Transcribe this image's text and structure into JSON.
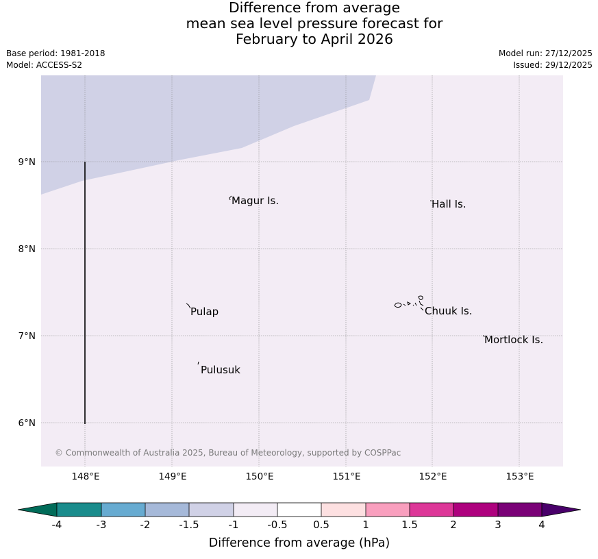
{
  "header": {
    "title_line1": "Difference from average",
    "title_line2": "mean sea level pressure forecast for",
    "title_line3": "February to April 2026",
    "base_period": "Base period: 1981-2018",
    "model": "Model: ACCESS-S2",
    "model_run": "Model run: 27/12/2025",
    "issued": "Issued: 29/12/2025"
  },
  "map": {
    "lon_labels": [
      "148°E",
      "149°E",
      "150°E",
      "151°E",
      "152°E",
      "153°E"
    ],
    "lat_labels": [
      "9°N",
      "8°N",
      "7°N",
      "6°N"
    ],
    "places": [
      {
        "name": "Magur Is."
      },
      {
        "name": "Hall Is."
      },
      {
        "name": "Pulap"
      },
      {
        "name": "Chuuk Is."
      },
      {
        "name": "Mortlock Is."
      },
      {
        "name": "Pulusuk"
      }
    ],
    "copyright": "© Commonwealth of Australia 2025, Bureau of Meteorology, supported by COSPPac",
    "colors": {
      "background_anomaly": "#f3ecf5",
      "negative_region": "#d0d1e6",
      "grid": "#888888",
      "transect": "#000000"
    }
  },
  "colorbar": {
    "title": "Difference from average (hPa)",
    "ticks": [
      "-4",
      "-3",
      "-2",
      "-1.5",
      "-1",
      "-0.5",
      "0.5",
      "1",
      "1.5",
      "2",
      "3",
      "4"
    ],
    "colors": [
      "#1a8c8c",
      "#67abd1",
      "#a6b9d9",
      "#d0d1e6",
      "#f3ecf5",
      "#ffffff",
      "#fde0e1",
      "#f99fbe",
      "#dd3798",
      "#ae017e",
      "#7a0177"
    ],
    "under_color": "#016c59",
    "over_color": "#49006a"
  }
}
